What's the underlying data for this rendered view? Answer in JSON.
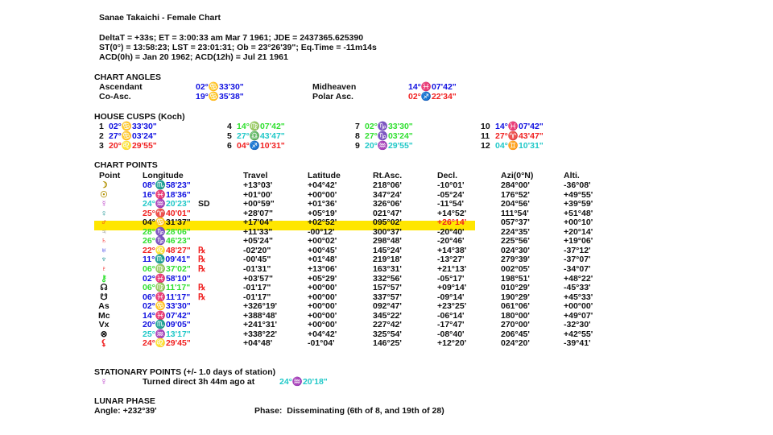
{
  "title": "Sanae Takaichi - Female Chart",
  "info_lines": [
    "DeltaT = +33s; ET = 3:00:33 am Mar 7 1961; JDE = 2437365.625390",
    "ST(0°) = 13:58:23; LST = 23:01:31; Ob = 23°26'39\"; Eq.Time = -11m14s",
    "ACD(0h) = Jan 20 1962; ACD(12h) = Jul 21 1961"
  ],
  "chart_angles": {
    "heading": "CHART ANGLES",
    "items": [
      {
        "label": "Ascendant",
        "value": "02°♋33'30\"",
        "color": "blue"
      },
      {
        "label": "Co-Asc.",
        "value": "19°♋35'38\"",
        "color": "blue"
      },
      {
        "label": "Midheaven",
        "value": "14°♓07'42\"",
        "color": "blue"
      },
      {
        "label": "Polar Asc.",
        "value": "02°♐22'34\"",
        "color": "red"
      }
    ]
  },
  "house_cusps": {
    "heading": "HOUSE CUSPS (Koch)",
    "items": [
      {
        "n": "1",
        "value": "02°♋33'30\"",
        "color": "blue"
      },
      {
        "n": "2",
        "value": "27°♋03'24\"",
        "color": "blue"
      },
      {
        "n": "3",
        "value": "20°♌29'55\"",
        "color": "red"
      },
      {
        "n": "4",
        "value": "14°♍07'42\"",
        "color": "green"
      },
      {
        "n": "5",
        "value": "27°♎43'47\"",
        "color": "cyan"
      },
      {
        "n": "6",
        "value": "04°♐10'31\"",
        "color": "red"
      },
      {
        "n": "7",
        "value": "02°♑33'30\"",
        "color": "green"
      },
      {
        "n": "8",
        "value": "27°♑03'24\"",
        "color": "green"
      },
      {
        "n": "9",
        "value": "20°♒29'55\"",
        "color": "cyan"
      },
      {
        "n": "10",
        "value": "14°♓07'42\"",
        "color": "blue"
      },
      {
        "n": "11",
        "value": "27°♈43'47\"",
        "color": "red"
      },
      {
        "n": "12",
        "value": "04°♊10'31\"",
        "color": "cyan"
      }
    ]
  },
  "chart_points": {
    "heading": "CHART POINTS",
    "columns": [
      "Point",
      "Longitude",
      "Travel",
      "Latitude",
      "Rt.Asc.",
      "Decl.",
      "Azi(0°N)",
      "Alti."
    ],
    "highlight_color": "#ffe600",
    "rows": [
      {
        "glyph": "☽",
        "gcolor": "olive",
        "lon": "08°♏58'23\"",
        "lcolor": "blue",
        "flag": "",
        "travel": "+13°03'",
        "lat": "+04°42'",
        "ra": "218°06'",
        "decl": "-10°01'",
        "azi": "284°00'",
        "alt": "-36°08'"
      },
      {
        "glyph": "☉",
        "gcolor": "olive",
        "lon": "16°♓18'36\"",
        "lcolor": "blue",
        "flag": "",
        "travel": "+01°00'",
        "lat": "+00°00'",
        "ra": "347°24'",
        "decl": "-05°24'",
        "azi": "176°52'",
        "alt": "+49°55'"
      },
      {
        "glyph": "☿",
        "gcolor": "purple",
        "lon": "24°♒20'23\"",
        "lcolor": "cyan",
        "flag": "SD",
        "travel": "+00°59\"",
        "lat": "+01°36'",
        "ra": "326°06'",
        "decl": "-11°54'",
        "azi": "204°56'",
        "alt": "+39°59'"
      },
      {
        "glyph": "♀",
        "gcolor": "teal",
        "lon": "25°♈40'01\"",
        "lcolor": "red",
        "flag": "",
        "travel": "+28'07\"",
        "lat": "+05°19'",
        "ra": "021°47'",
        "decl": "+14°52'",
        "azi": "111°54'",
        "alt": "+51°48'"
      },
      {
        "glyph": "♂",
        "gcolor": "red",
        "lon": "04°♋31'37\"",
        "lcolor": "black",
        "flag": "",
        "travel": "+17'04\"",
        "lat": "+02°52'",
        "ra": "095°02'",
        "decl": "+26°14'",
        "decl_color": "red",
        "azi": "057°37'",
        "alt": "+00°10'",
        "highlight": true
      },
      {
        "glyph": "♃",
        "gcolor": "gray",
        "lon": "28°♑28'06\"",
        "lcolor": "green",
        "flag": "",
        "travel": "+11'33\"",
        "lat": "-00°12'",
        "ra": "300°37'",
        "decl": "-20°40'",
        "azi": "224°35'",
        "alt": "+20°14'"
      },
      {
        "glyph": "♄",
        "gcolor": "red",
        "lon": "26°♑46'23\"",
        "lcolor": "green",
        "flag": "",
        "travel": "+05'24\"",
        "lat": "+00°02'",
        "ra": "298°48'",
        "decl": "-20°46'",
        "azi": "225°56'",
        "alt": "+19°06'"
      },
      {
        "glyph": "♅",
        "gcolor": "blue",
        "lon": "22°♌48'27\"",
        "lcolor": "red",
        "flag": "℞",
        "travel": "-02'20\"",
        "lat": "+00°45'",
        "ra": "145°24'",
        "decl": "+14°38'",
        "azi": "024°30'",
        "alt": "-37°12'"
      },
      {
        "glyph": "♆",
        "gcolor": "teal",
        "lon": "11°♏09'41\"",
        "lcolor": "blue",
        "flag": "℞",
        "travel": "-00'45\"",
        "lat": "+01°48'",
        "ra": "219°18'",
        "decl": "-13°27'",
        "azi": "279°39'",
        "alt": "-37°07'"
      },
      {
        "glyph": "♇",
        "gcolor": "red",
        "lon": "06°♍37'02\"",
        "lcolor": "green",
        "flag": "℞",
        "travel": "-01'31\"",
        "lat": "+13°06'",
        "ra": "163°31'",
        "decl": "+21°13'",
        "azi": "002°05'",
        "alt": "-34°07'"
      },
      {
        "glyph": "⚷",
        "gcolor": "green",
        "lon": "02°♓58'10\"",
        "lcolor": "blue",
        "flag": "",
        "travel": "+03'57\"",
        "lat": "+05°29'",
        "ra": "332°56'",
        "decl": "-05°17'",
        "azi": "198°51'",
        "alt": "+48°22'"
      },
      {
        "glyph": "☊",
        "gcolor": "black",
        "lon": "06°♍11'17\"",
        "lcolor": "green",
        "flag": "℞",
        "travel": "-01'17\"",
        "lat": "+00°00'",
        "ra": "157°57'",
        "decl": "+09°14'",
        "azi": "010°29'",
        "alt": "-45°33'"
      },
      {
        "glyph": "☋",
        "gcolor": "black",
        "lon": "06°♓11'17\"",
        "lcolor": "blue",
        "flag": "℞",
        "travel": "-01'17\"",
        "lat": "+00°00'",
        "ra": "337°57'",
        "decl": "-09°14'",
        "azi": "190°29'",
        "alt": "+45°33'"
      },
      {
        "glyph": "As",
        "gcolor": "black",
        "lon": "02°♋33'30\"",
        "lcolor": "blue",
        "flag": "",
        "travel": "+326°19'",
        "lat": "+00°00'",
        "ra": "092°47'",
        "decl": "+23°25'",
        "azi": "061°06'",
        "alt": "+00°00'"
      },
      {
        "glyph": "Mc",
        "gcolor": "black",
        "lon": "14°♓07'42\"",
        "lcolor": "blue",
        "flag": "",
        "travel": "+388°48'",
        "lat": "+00°00'",
        "ra": "345°22'",
        "decl": "-06°14'",
        "azi": "180°00'",
        "alt": "+49°07'"
      },
      {
        "glyph": "Vx",
        "gcolor": "black",
        "lon": "20°♏09'05\"",
        "lcolor": "blue",
        "flag": "",
        "travel": "+241°31'",
        "lat": "+00°00'",
        "ra": "227°42'",
        "decl": "-17°47'",
        "azi": "270°00'",
        "alt": "-32°30'"
      },
      {
        "glyph": "⊗",
        "gcolor": "black",
        "lon": "25°♒13'17\"",
        "lcolor": "cyan",
        "flag": "",
        "travel": "+338°22'",
        "lat": "+04°42'",
        "ra": "325°54'",
        "decl": "-08°40'",
        "azi": "206°45'",
        "alt": "+42°55'"
      },
      {
        "glyph": "⚸",
        "gcolor": "red",
        "lon": "24°♌29'45\"",
        "lcolor": "red",
        "flag": "",
        "travel": "+04°48'",
        "lat": "-01°04'",
        "ra": "146°25'",
        "decl": "+12°20'",
        "azi": "024°20'",
        "alt": "-39°41'"
      }
    ]
  },
  "stationary": {
    "heading": "STATIONARY POINTS (+/- 1.0 days of station)",
    "glyph": "☿",
    "text": "Turned direct 3h 44m ago at",
    "value": "24°♒20'18\""
  },
  "lunar_phase": {
    "heading": "LUNAR PHASE",
    "angle": "Angle: +232°39'",
    "phase": "Phase:  Disseminating (6th of 8, and 19th of 28)"
  }
}
